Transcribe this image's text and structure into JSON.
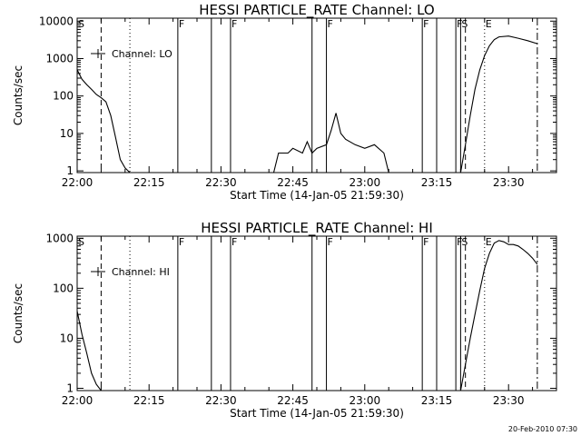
{
  "footer_date": "20-Feb-2010 07:30",
  "chart_data": [
    {
      "type": "line",
      "title": "HESSI PARTICLE_RATE Channel: LO",
      "xlabel": "Start Time (14-Jan-05 21:59:30)",
      "ylabel": "Counts/sec",
      "y_scale": "log",
      "ylim": [
        0.9,
        12000
      ],
      "xlim": [
        "22:00",
        "23:40"
      ],
      "x_ticks": [
        "22:00",
        "22:15",
        "22:30",
        "22:45",
        "23:00",
        "23:15",
        "23:30"
      ],
      "y_ticks": [
        "1",
        "10",
        "100",
        "1000",
        "10000"
      ],
      "legend": {
        "label": "Channel: LO",
        "position": "top-left"
      },
      "series": [
        {
          "name": "Channel: LO",
          "x": [
            "21:59:30",
            "22:00",
            "22:01",
            "22:02",
            "22:03",
            "22:04",
            "22:05",
            "22:06",
            "22:07",
            "22:08",
            "22:09",
            "22:10",
            "22:11"
          ],
          "y": [
            700,
            500,
            280,
            200,
            150,
            110,
            90,
            70,
            30,
            8,
            2,
            1.2,
            0.9
          ]
        },
        {
          "name": "Channel: LO",
          "x": [
            "22:41",
            "22:42",
            "22:44",
            "22:45",
            "22:47",
            "22:48",
            "22:49",
            "22:50",
            "22:52",
            "22:53",
            "22:54",
            "22:55",
            "22:56",
            "22:58",
            "23:00",
            "23:02",
            "23:04",
            "23:05"
          ],
          "y": [
            0.9,
            3,
            3,
            4,
            3,
            6,
            3,
            4,
            5,
            12,
            35,
            10,
            7,
            5,
            4,
            5,
            3,
            0.9
          ]
        },
        {
          "name": "Channel: LO",
          "x": [
            "23:20",
            "23:21",
            "23:22",
            "23:23",
            "23:24",
            "23:25",
            "23:26",
            "23:27",
            "23:28",
            "23:30",
            "23:32",
            "23:34",
            "23:36"
          ],
          "y": [
            0.9,
            5,
            30,
            150,
            500,
            1200,
            2200,
            3200,
            3800,
            4000,
            3500,
            3000,
            2500
          ]
        }
      ],
      "markers": [
        {
          "time": "22:00",
          "label": "S",
          "style": "solid"
        },
        {
          "time": "22:05",
          "label": "",
          "style": "dashed"
        },
        {
          "time": "22:11",
          "label": "",
          "style": "dotted"
        },
        {
          "time": "22:21",
          "label": "F",
          "style": "solid"
        },
        {
          "time": "22:28",
          "label": "",
          "style": "solid"
        },
        {
          "time": "22:32",
          "label": "F",
          "style": "solid"
        },
        {
          "time": "22:49",
          "label": "",
          "style": "solid"
        },
        {
          "time": "22:52",
          "label": "F",
          "style": "solid"
        },
        {
          "time": "23:12",
          "label": "F",
          "style": "solid"
        },
        {
          "time": "23:15",
          "label": "",
          "style": "solid"
        },
        {
          "time": "23:19",
          "label": "F",
          "style": "solid"
        },
        {
          "time": "23:20",
          "label": "S",
          "style": "solid"
        },
        {
          "time": "23:21",
          "label": "",
          "style": "dashed"
        },
        {
          "time": "23:25",
          "label": "E",
          "style": "dotted"
        },
        {
          "time": "23:36",
          "label": "",
          "style": "dashdot"
        }
      ]
    },
    {
      "type": "line",
      "title": "HESSI PARTICLE_RATE Channel: HI",
      "xlabel": "Start Time (14-Jan-05 21:59:30)",
      "ylabel": "Counts/sec",
      "y_scale": "log",
      "ylim": [
        0.9,
        1100
      ],
      "xlim": [
        "22:00",
        "23:40"
      ],
      "x_ticks": [
        "22:00",
        "22:15",
        "22:30",
        "22:45",
        "23:00",
        "23:15",
        "23:30"
      ],
      "y_ticks": [
        "1",
        "10",
        "100",
        "1000"
      ],
      "legend": {
        "label": "Channel: HI",
        "position": "top-left"
      },
      "series": [
        {
          "name": "Channel: HI",
          "x": [
            "21:59:30",
            "22:00",
            "22:01",
            "22:02",
            "22:03",
            "22:04",
            "22:05"
          ],
          "y": [
            60,
            35,
            12,
            5,
            2,
            1.2,
            0.9
          ]
        },
        {
          "name": "Channel: HI",
          "x": [
            "23:20",
            "23:21",
            "23:22",
            "23:23",
            "23:24",
            "23:25",
            "23:26",
            "23:27",
            "23:28",
            "23:29",
            "23:30",
            "23:31",
            "23:32",
            "23:33",
            "23:34",
            "23:35",
            "23:36"
          ],
          "y": [
            0.9,
            3,
            10,
            30,
            90,
            250,
            500,
            800,
            900,
            850,
            750,
            750,
            700,
            600,
            500,
            400,
            300
          ]
        }
      ],
      "markers": [
        {
          "time": "22:00",
          "label": "S",
          "style": "solid"
        },
        {
          "time": "22:05",
          "label": "",
          "style": "dashed"
        },
        {
          "time": "22:11",
          "label": "",
          "style": "dotted"
        },
        {
          "time": "22:21",
          "label": "F",
          "style": "solid"
        },
        {
          "time": "22:28",
          "label": "",
          "style": "solid"
        },
        {
          "time": "22:32",
          "label": "F",
          "style": "solid"
        },
        {
          "time": "22:49",
          "label": "",
          "style": "solid"
        },
        {
          "time": "22:52",
          "label": "F",
          "style": "solid"
        },
        {
          "time": "23:12",
          "label": "F",
          "style": "solid"
        },
        {
          "time": "23:15",
          "label": "",
          "style": "solid"
        },
        {
          "time": "23:19",
          "label": "F",
          "style": "solid"
        },
        {
          "time": "23:20",
          "label": "S",
          "style": "solid"
        },
        {
          "time": "23:21",
          "label": "",
          "style": "dashed"
        },
        {
          "time": "23:25",
          "label": "E",
          "style": "dotted"
        },
        {
          "time": "23:36",
          "label": "",
          "style": "dashdot"
        }
      ]
    }
  ]
}
